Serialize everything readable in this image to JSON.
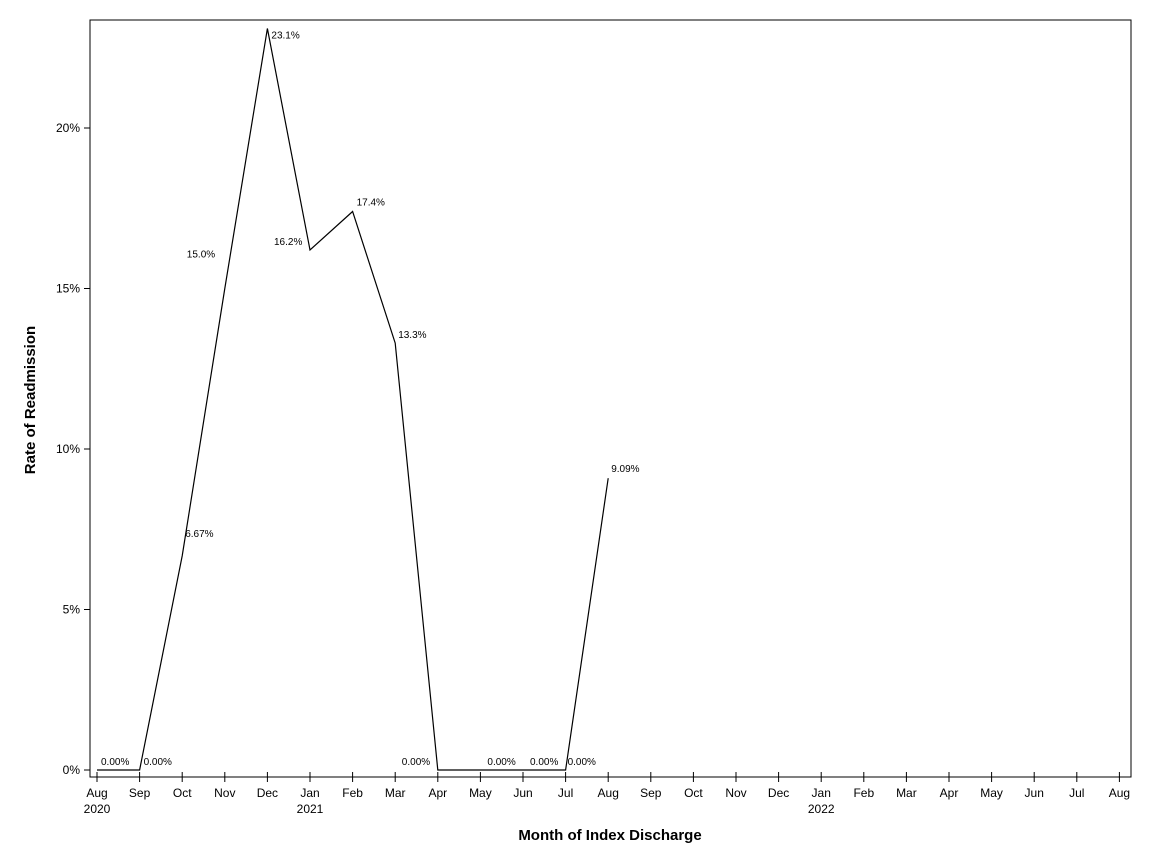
{
  "chart_data": {
    "type": "line",
    "title": "",
    "xlabel": "Month of Index Discharge",
    "ylabel": "Rate of Readmission",
    "ylim": [
      0,
      0.235
    ],
    "grid": false,
    "x_ticks": [
      {
        "month": "Aug",
        "year": "2020"
      },
      {
        "month": "Sep",
        "year": ""
      },
      {
        "month": "Oct",
        "year": ""
      },
      {
        "month": "Nov",
        "year": ""
      },
      {
        "month": "Dec",
        "year": ""
      },
      {
        "month": "Jan",
        "year": "2021"
      },
      {
        "month": "Feb",
        "year": ""
      },
      {
        "month": "Mar",
        "year": ""
      },
      {
        "month": "Apr",
        "year": ""
      },
      {
        "month": "May",
        "year": ""
      },
      {
        "month": "Jun",
        "year": ""
      },
      {
        "month": "Jul",
        "year": ""
      },
      {
        "month": "Aug",
        "year": ""
      },
      {
        "month": "Sep",
        "year": ""
      },
      {
        "month": "Oct",
        "year": ""
      },
      {
        "month": "Nov",
        "year": ""
      },
      {
        "month": "Dec",
        "year": ""
      },
      {
        "month": "Jan",
        "year": "2022"
      },
      {
        "month": "Feb",
        "year": ""
      },
      {
        "month": "Mar",
        "year": ""
      },
      {
        "month": "Apr",
        "year": ""
      },
      {
        "month": "May",
        "year": ""
      },
      {
        "month": "Jun",
        "year": ""
      },
      {
        "month": "Jul",
        "year": ""
      },
      {
        "month": "Aug",
        "year": ""
      }
    ],
    "y_ticks": [
      {
        "value": 0,
        "label": "0%"
      },
      {
        "value": 0.05,
        "label": "5%"
      },
      {
        "value": 0.1,
        "label": "10%"
      },
      {
        "value": 0.15,
        "label": "15%"
      },
      {
        "value": 0.2,
        "label": "20%"
      }
    ],
    "series": [
      {
        "points": [
          {
            "x": "2020-08",
            "y": 0.0,
            "label": "0.00%"
          },
          {
            "x": "2020-09",
            "y": 0.0,
            "label": "0.00%"
          },
          {
            "x": "2020-10",
            "y": 0.0667,
            "label": "6.67%"
          },
          {
            "x": "2020-11",
            "y": 0.15,
            "label": "15.0%"
          },
          {
            "x": "2020-12",
            "y": 0.231,
            "label": "23.1%"
          },
          {
            "x": "2021-01",
            "y": 0.162,
            "label": "16.2%"
          },
          {
            "x": "2021-02",
            "y": 0.174,
            "label": "17.4%"
          },
          {
            "x": "2021-03",
            "y": 0.133,
            "label": "13.3%"
          },
          {
            "x": "2021-04",
            "y": 0.0,
            "label": "0.00%"
          },
          {
            "x": "2021-05",
            "y": 0.0,
            "label": "0.00%"
          },
          {
            "x": "2021-06",
            "y": 0.0,
            "label": "0.00%"
          },
          {
            "x": "2021-07",
            "y": 0.0,
            "label": "0.00%"
          },
          {
            "x": "2021-08",
            "y": 0.0909,
            "label": "9.09%"
          }
        ]
      }
    ]
  }
}
